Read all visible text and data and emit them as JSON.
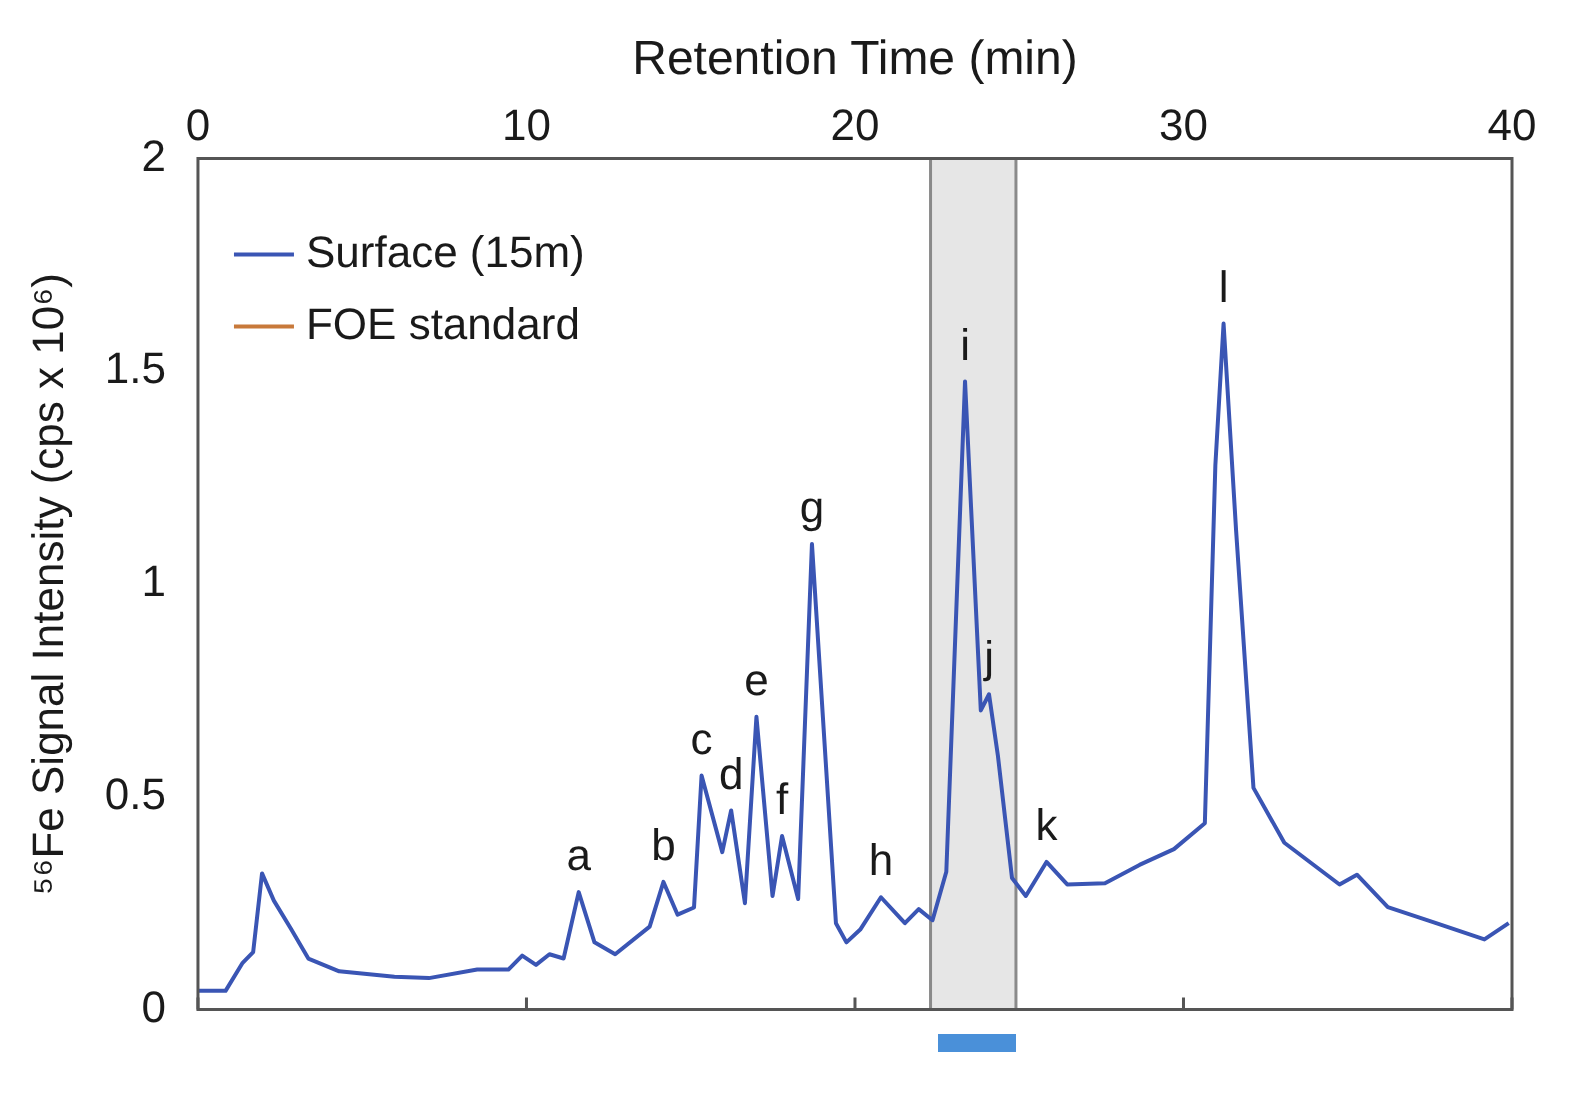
{
  "chart_data": {
    "type": "line",
    "xlabel": "Retention Time (min)",
    "ylabel": "⁵⁶Fe Signal Intensity (cps x 10⁶)",
    "xlim": [
      0,
      40
    ],
    "xticks": [
      0,
      10,
      20,
      30,
      40
    ],
    "ylim": [
      0,
      2
    ],
    "yticks": [
      0,
      0.5,
      1,
      1.5,
      2
    ],
    "grid": false,
    "legend": "top left",
    "marker": "none",
    "line_style": "solid",
    "series": [
      {
        "name": "Surface (15m)",
        "color": "#3a55b4",
        "x": [
          0,
          0.84,
          1.36,
          1.68,
          1.95,
          2.31,
          2.83,
          3.36,
          4.3,
          5.98,
          7.03,
          8.5,
          9.45,
          9.87,
          10.29,
          10.7,
          11.13,
          11.59,
          12.07,
          12.7,
          13.75,
          14.17,
          14.6,
          15.1,
          15.33,
          15.96,
          16.23,
          16.65,
          17.0,
          17.49,
          17.78,
          18.27,
          18.69,
          19.42,
          19.74,
          20.16,
          20.79,
          21.52,
          21.94,
          22.36,
          22.78,
          23.35,
          23.83,
          24.08,
          24.35,
          24.78,
          25.2,
          25.83,
          26.46,
          27.61,
          28.66,
          29.71,
          30.65,
          30.97,
          31.22,
          31.6,
          32.13,
          33.07,
          34.75,
          35.28,
          36.22,
          37.69,
          39.16,
          39.9
        ],
        "values": [
          0.044,
          0.044,
          0.11,
          0.135,
          0.32,
          0.256,
          0.19,
          0.12,
          0.09,
          0.077,
          0.074,
          0.094,
          0.094,
          0.127,
          0.105,
          0.13,
          0.12,
          0.276,
          0.158,
          0.13,
          0.195,
          0.3,
          0.223,
          0.24,
          0.55,
          0.37,
          0.468,
          0.25,
          0.688,
          0.267,
          0.408,
          0.26,
          1.094,
          0.203,
          0.158,
          0.188,
          0.264,
          0.203,
          0.236,
          0.21,
          0.324,
          1.476,
          0.703,
          0.741,
          0.597,
          0.309,
          0.267,
          0.347,
          0.294,
          0.297,
          0.34,
          0.377,
          0.438,
          1.279,
          1.612,
          1.127,
          0.521,
          0.392,
          0.294,
          0.317,
          0.241,
          0.203,
          0.165,
          0.203
        ]
      },
      {
        "name": "FOE standard",
        "color": "#c8793a"
      }
    ],
    "bands": [
      {
        "axis": "x",
        "from": 22.3,
        "to": 24.9,
        "color": "#e6e6e6"
      }
    ],
    "ref_lines": [
      {
        "axis": "x",
        "value": 22.3,
        "color": "#8a8a8a"
      },
      {
        "axis": "x",
        "value": 24.9,
        "color": "#8a8a8a"
      }
    ],
    "annotations": [
      {
        "text": "a",
        "x": 11.59,
        "y": 0.276
      },
      {
        "text": "b",
        "x": 14.17,
        "y": 0.3
      },
      {
        "text": "c",
        "x": 15.33,
        "y": 0.55
      },
      {
        "text": "d",
        "x": 16.23,
        "y": 0.468
      },
      {
        "text": "e",
        "x": 17.0,
        "y": 0.688
      },
      {
        "text": "f",
        "x": 17.78,
        "y": 0.408
      },
      {
        "text": "g",
        "x": 18.69,
        "y": 1.094
      },
      {
        "text": "h",
        "x": 20.79,
        "y": 0.264
      },
      {
        "text": "i",
        "x": 23.35,
        "y": 1.476
      },
      {
        "text": "j",
        "x": 24.08,
        "y": 0.741
      },
      {
        "text": "k",
        "x": 25.83,
        "y": 0.347
      },
      {
        "text": "l",
        "x": 31.22,
        "y": 1.612
      }
    ]
  }
}
